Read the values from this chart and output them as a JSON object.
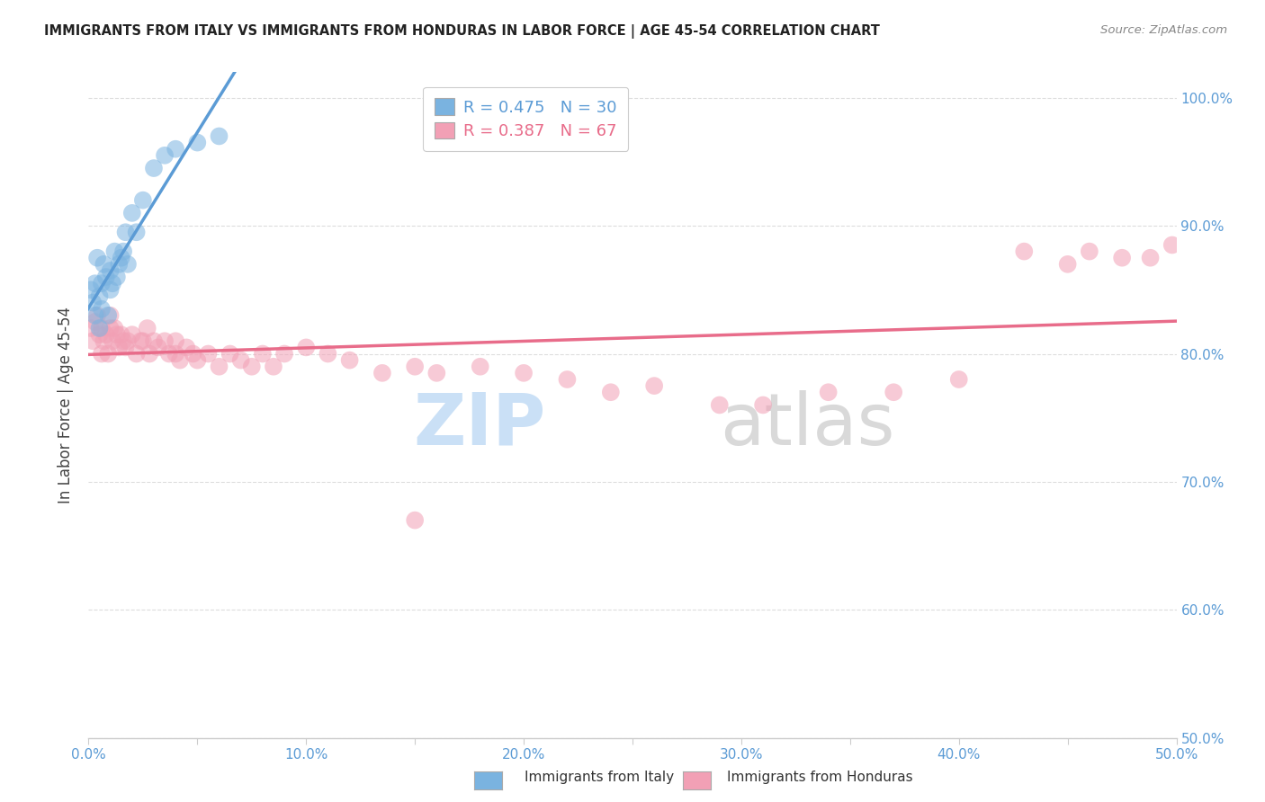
{
  "title": "IMMIGRANTS FROM ITALY VS IMMIGRANTS FROM HONDURAS IN LABOR FORCE | AGE 45-54 CORRELATION CHART",
  "source": "Source: ZipAtlas.com",
  "ylabel": "In Labor Force | Age 45-54",
  "xlim": [
    0.0,
    0.5
  ],
  "ylim": [
    0.5,
    1.02
  ],
  "xticks": [
    0.0,
    0.05,
    0.1,
    0.15,
    0.2,
    0.25,
    0.3,
    0.35,
    0.4,
    0.45,
    0.5
  ],
  "yticks": [
    0.5,
    0.6,
    0.7,
    0.8,
    0.9,
    1.0
  ],
  "ytick_right_labels": [
    "50.0%",
    "60.0%",
    "70.0%",
    "80.0%",
    "90.0%",
    "100.0%"
  ],
  "xtick_labels": [
    "0.0%",
    "",
    "10.0%",
    "",
    "20.0%",
    "",
    "30.0%",
    "",
    "40.0%",
    "",
    "50.0%"
  ],
  "italy_color": "#7ab3e0",
  "honduras_color": "#f2a0b5",
  "italy_line_color": "#5b9bd5",
  "honduras_line_color": "#e86c8a",
  "italy_R": 0.475,
  "italy_N": 30,
  "honduras_R": 0.387,
  "honduras_N": 67,
  "italy_scatter_x": [
    0.001,
    0.002,
    0.003,
    0.003,
    0.004,
    0.005,
    0.005,
    0.006,
    0.006,
    0.007,
    0.008,
    0.009,
    0.01,
    0.01,
    0.011,
    0.012,
    0.013,
    0.014,
    0.015,
    0.016,
    0.017,
    0.018,
    0.02,
    0.022,
    0.025,
    0.03,
    0.035,
    0.04,
    0.05,
    0.06
  ],
  "italy_scatter_y": [
    0.85,
    0.84,
    0.855,
    0.83,
    0.875,
    0.845,
    0.82,
    0.855,
    0.835,
    0.87,
    0.86,
    0.83,
    0.865,
    0.85,
    0.855,
    0.88,
    0.86,
    0.87,
    0.875,
    0.88,
    0.895,
    0.87,
    0.91,
    0.895,
    0.92,
    0.945,
    0.955,
    0.96,
    0.965,
    0.97
  ],
  "honduras_scatter_x": [
    0.001,
    0.002,
    0.003,
    0.004,
    0.005,
    0.006,
    0.006,
    0.007,
    0.008,
    0.009,
    0.01,
    0.01,
    0.011,
    0.012,
    0.013,
    0.014,
    0.015,
    0.016,
    0.017,
    0.018,
    0.02,
    0.022,
    0.024,
    0.025,
    0.027,
    0.028,
    0.03,
    0.032,
    0.035,
    0.037,
    0.04,
    0.04,
    0.042,
    0.045,
    0.048,
    0.05,
    0.055,
    0.06,
    0.065,
    0.07,
    0.075,
    0.08,
    0.085,
    0.09,
    0.1,
    0.11,
    0.12,
    0.135,
    0.15,
    0.16,
    0.18,
    0.2,
    0.22,
    0.24,
    0.26,
    0.29,
    0.31,
    0.34,
    0.37,
    0.4,
    0.43,
    0.45,
    0.46,
    0.475,
    0.488,
    0.498,
    0.15
  ],
  "honduras_scatter_y": [
    0.82,
    0.81,
    0.825,
    0.83,
    0.815,
    0.8,
    0.82,
    0.81,
    0.815,
    0.8,
    0.82,
    0.83,
    0.81,
    0.82,
    0.815,
    0.805,
    0.815,
    0.81,
    0.805,
    0.81,
    0.815,
    0.8,
    0.81,
    0.81,
    0.82,
    0.8,
    0.81,
    0.805,
    0.81,
    0.8,
    0.8,
    0.81,
    0.795,
    0.805,
    0.8,
    0.795,
    0.8,
    0.79,
    0.8,
    0.795,
    0.79,
    0.8,
    0.79,
    0.8,
    0.805,
    0.8,
    0.795,
    0.785,
    0.79,
    0.785,
    0.79,
    0.785,
    0.78,
    0.77,
    0.775,
    0.76,
    0.76,
    0.77,
    0.77,
    0.78,
    0.88,
    0.87,
    0.88,
    0.875,
    0.875,
    0.885,
    0.67
  ],
  "watermark_zip_color": "#c5ddf5",
  "watermark_atlas_color": "#d5d5d5",
  "background_color": "#ffffff",
  "grid_color": "#dddddd"
}
